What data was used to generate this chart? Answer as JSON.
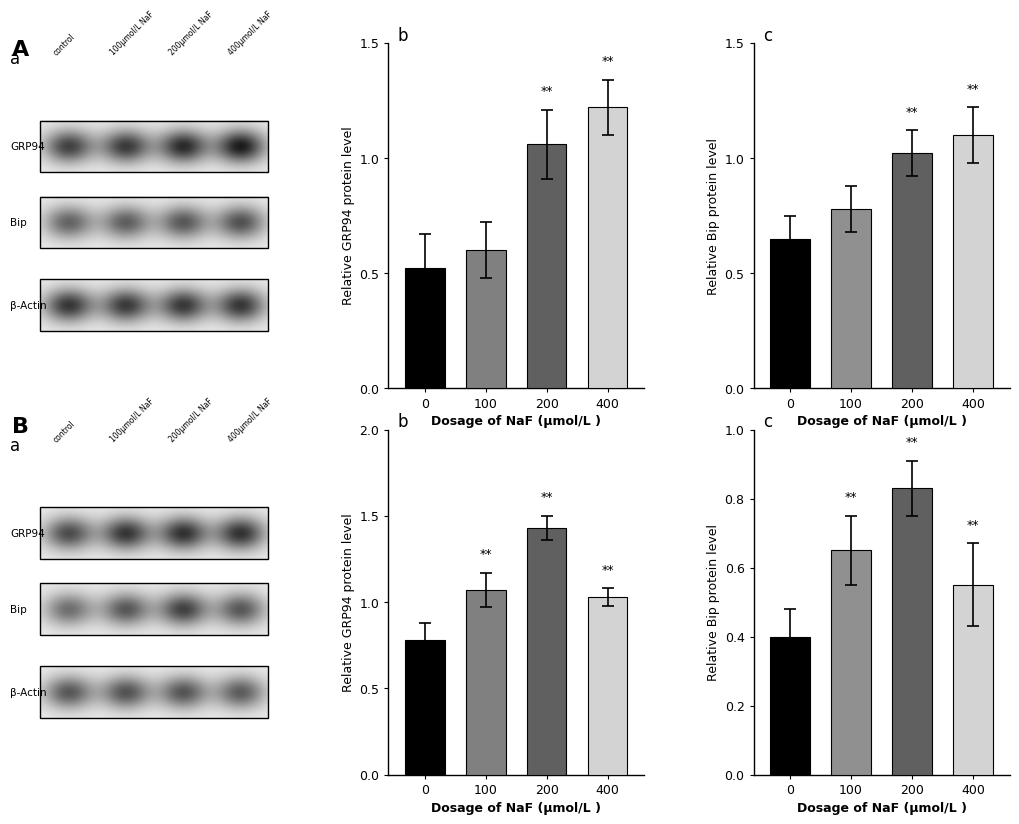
{
  "panel_A_b": {
    "values": [
      0.52,
      0.6,
      1.06,
      1.22
    ],
    "errors": [
      0.15,
      0.12,
      0.15,
      0.12
    ],
    "sig": [
      false,
      false,
      true,
      true
    ],
    "colors": [
      "#000000",
      "#808080",
      "#606060",
      "#d3d3d3"
    ],
    "ylabel": "Relative GRP94 protein level",
    "xlabel": "Dosage of NaF (μmol/L )",
    "xticks": [
      "0",
      "100",
      "200",
      "400"
    ],
    "ylim": [
      0,
      1.5
    ],
    "yticks": [
      0.0,
      0.5,
      1.0,
      1.5
    ],
    "label": "b"
  },
  "panel_A_c": {
    "values": [
      0.65,
      0.78,
      1.02,
      1.1
    ],
    "errors": [
      0.1,
      0.1,
      0.1,
      0.12
    ],
    "sig": [
      false,
      false,
      true,
      true
    ],
    "colors": [
      "#000000",
      "#909090",
      "#606060",
      "#d3d3d3"
    ],
    "ylabel": "Relative Bip protein level",
    "xlabel": "Dosage of NaF (μmol/L )",
    "xticks": [
      "0",
      "100",
      "200",
      "400"
    ],
    "ylim": [
      0,
      1.5
    ],
    "yticks": [
      0.0,
      0.5,
      1.0,
      1.5
    ],
    "label": "c"
  },
  "panel_B_b": {
    "values": [
      0.78,
      1.07,
      1.43,
      1.03
    ],
    "errors": [
      0.1,
      0.1,
      0.07,
      0.05
    ],
    "sig": [
      false,
      true,
      true,
      true
    ],
    "colors": [
      "#000000",
      "#808080",
      "#606060",
      "#d3d3d3"
    ],
    "ylabel": "Relative GRP94 protein level",
    "xlabel": "Dosage of NaF (μmol/L )",
    "xticks": [
      "0",
      "100",
      "200",
      "400"
    ],
    "ylim": [
      0,
      2.0
    ],
    "yticks": [
      0.0,
      0.5,
      1.0,
      1.5,
      2.0
    ],
    "label": "b"
  },
  "panel_B_c": {
    "values": [
      0.4,
      0.65,
      0.83,
      0.55
    ],
    "errors": [
      0.08,
      0.1,
      0.08,
      0.12
    ],
    "sig": [
      false,
      true,
      true,
      true
    ],
    "colors": [
      "#000000",
      "#909090",
      "#606060",
      "#d3d3d3"
    ],
    "ylabel": "Relative Bip protein level",
    "xlabel": "Dosage of NaF (μmol/L )",
    "xticks": [
      "0",
      "100",
      "200",
      "400"
    ],
    "ylim": [
      0,
      1.0
    ],
    "yticks": [
      0.0,
      0.2,
      0.4,
      0.6,
      0.8,
      1.0
    ],
    "label": "c"
  },
  "blot_A": {
    "GRP94_intensities": [
      0.75,
      0.78,
      0.85,
      0.92
    ],
    "Bip_intensities": [
      0.6,
      0.62,
      0.65,
      0.68
    ],
    "Actin_intensities": [
      0.8,
      0.78,
      0.79,
      0.8
    ]
  },
  "blot_B": {
    "GRP94_intensities": [
      0.7,
      0.8,
      0.82,
      0.82
    ],
    "Bip_intensities": [
      0.55,
      0.65,
      0.75,
      0.65
    ],
    "Actin_intensities": [
      0.65,
      0.67,
      0.66,
      0.63
    ]
  },
  "background_color": "#ffffff",
  "label_A": "A",
  "label_B": "B",
  "label_a": "a",
  "sig_marker": "**",
  "lanes": [
    "control",
    "100μmol/L NaF",
    "200μmol/L NaF",
    "400μmol/L NaF"
  ],
  "bands": [
    "GRP94",
    "Bip",
    "β-Actin"
  ]
}
